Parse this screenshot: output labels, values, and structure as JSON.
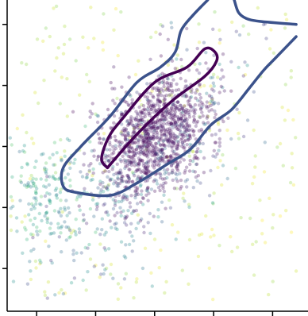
{
  "chart_data": {
    "type": "scatter",
    "title": "",
    "xlabel": "",
    "ylabel": "",
    "xlim": [
      -2.5,
      2.6
    ],
    "ylim": [
      -2.7,
      2.4
    ],
    "grid": false,
    "legend": "none",
    "x_tick_values": [
      -2,
      -1,
      0,
      1,
      2
    ],
    "y_tick_values": [
      -2,
      -1,
      0,
      1,
      2
    ],
    "x_tick_labels": [],
    "y_tick_labels": [],
    "point_alpha": 0.3,
    "colormap": "viridis",
    "point_count": 1900,
    "series": [
      {
        "role": "dense-core",
        "count": 1050,
        "color_value_range": [
          0.0,
          0.08
        ],
        "center": [
          0.0,
          0.2
        ],
        "spread": [
          0.38,
          0.55
        ],
        "rotation_deg": 53
      },
      {
        "role": "diffuse-cloud",
        "count": 420,
        "color_value_range": [
          0.1,
          0.55
        ],
        "center": [
          -0.2,
          -0.4
        ],
        "spread": [
          0.5,
          1.2
        ],
        "rotation_deg": 50
      },
      {
        "role": "lower-left-band",
        "count": 180,
        "color_value_range": [
          0.35,
          0.75
        ],
        "center": [
          -1.8,
          -0.8
        ],
        "spread": [
          0.5,
          0.35
        ],
        "rotation_deg": 20
      },
      {
        "role": "background-uniform",
        "count": 250,
        "color_value_range": [
          0.8,
          1.0
        ],
        "box_x": [
          -2.45,
          2.4
        ],
        "box_y": [
          -2.55,
          2.3
        ]
      }
    ],
    "contours": [
      {
        "level": "inner",
        "color": "#440154",
        "points": [
          [
            -0.8,
            -0.35
          ],
          [
            -0.3,
            0.2
          ],
          [
            0.3,
            0.75
          ],
          [
            0.85,
            1.15
          ],
          [
            1.05,
            1.4
          ],
          [
            1.02,
            1.55
          ],
          [
            0.85,
            1.6
          ],
          [
            0.55,
            1.3
          ],
          [
            0.0,
            1.05
          ],
          [
            -0.55,
            0.45
          ],
          [
            -0.78,
            0.15
          ],
          [
            -0.9,
            -0.2
          ],
          [
            -0.8,
            -0.35
          ]
        ]
      },
      {
        "level": "outer",
        "color": "#3b528b",
        "points": [
          [
            0.9,
            2.4
          ],
          [
            0.65,
            2.15
          ],
          [
            0.45,
            1.9
          ],
          [
            0.35,
            1.55
          ],
          [
            0.1,
            1.3
          ],
          [
            -0.3,
            1.05
          ],
          [
            -0.75,
            0.5
          ],
          [
            -1.25,
            0.0
          ],
          [
            -1.55,
            -0.35
          ],
          [
            -1.55,
            -0.65
          ],
          [
            -1.35,
            -0.75
          ],
          [
            -0.75,
            -0.8
          ],
          [
            -0.3,
            -0.6
          ],
          [
            0.2,
            -0.3
          ],
          [
            0.6,
            -0.05
          ],
          [
            0.95,
            0.35
          ],
          [
            1.3,
            0.6
          ],
          [
            1.6,
            0.95
          ],
          [
            1.85,
            1.25
          ],
          [
            2.05,
            1.45
          ],
          [
            2.4,
            1.8
          ]
        ]
      },
      {
        "level": "outer-fragment",
        "color": "#3b528b",
        "points": [
          [
            1.35,
            2.4
          ],
          [
            1.42,
            2.2
          ],
          [
            1.55,
            2.1
          ],
          [
            1.78,
            2.05
          ],
          [
            2.4,
            2.0
          ]
        ]
      }
    ]
  }
}
